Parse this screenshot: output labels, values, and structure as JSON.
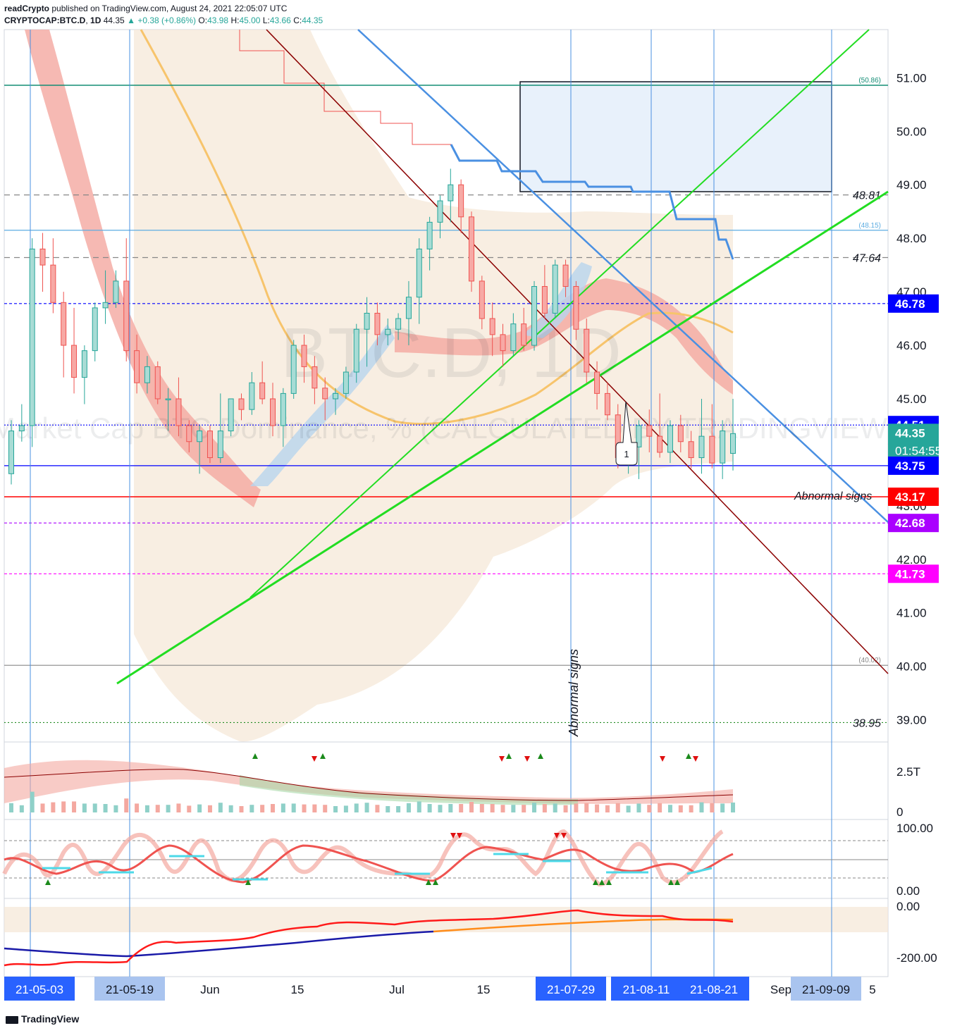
{
  "header": {
    "author": "readCrypto",
    "published_text": "published on TradingView.com, August 24, 2021 22:05:07 UTC",
    "symbol": "CRYPTOCAP:BTC.D",
    "interval": "1D",
    "last": "44.35",
    "change": "+0.38 (+0.86%)",
    "open_label": "O:",
    "open": "43.98",
    "high_label": "H:",
    "high": "45.00",
    "low_label": "L:",
    "low": "43.66",
    "close_label": "C:",
    "close": "44.35"
  },
  "watermark": {
    "symbol": "BTC.D, 1D",
    "description": "Market Cap BTC Dominance, % (CALCULATED BY TRADINGVIEW)"
  },
  "footer": {
    "logo_text": "TradingView"
  },
  "colors": {
    "up": "#26a69a",
    "down": "#ef5350",
    "blue": "#4a90e2",
    "green": "#22dd22",
    "darkred": "#8b0000",
    "orange": "#f7c46c",
    "band": "#f5e8d8"
  },
  "chart_data": {
    "type": "candlestick",
    "title": "",
    "y_axis": {
      "ylim": [
        38.6,
        51.9
      ],
      "ticks": [
        "39.00",
        "40.00",
        "41.00",
        "42.00",
        "43.00",
        "44.00",
        "45.00",
        "46.00",
        "47.00",
        "48.00",
        "49.00",
        "50.00",
        "51.00"
      ]
    },
    "x_axis": {
      "labels": [
        "21-05-03",
        "21-05-19",
        "Jun",
        "15",
        "Jul",
        "15",
        "21-07-29",
        "21-08-11",
        "21-08-21",
        "Sep",
        "21-09-09",
        "5"
      ],
      "highlighted": [
        "21-05-03",
        "21-05-19",
        "21-07-29",
        "21-08-11",
        "21-08-21",
        "21-09-09"
      ]
    },
    "price_badges": [
      {
        "value": "46.78",
        "color": "#0000ff"
      },
      {
        "value": "44.51",
        "color": "#0000ff"
      },
      {
        "value": "44.35",
        "countdown": "01:54:55",
        "color": "#26a69a"
      },
      {
        "value": "43.75",
        "color": "#0000ff"
      },
      {
        "value": "43.17",
        "color": "#ff0000"
      },
      {
        "value": "42.68",
        "color": "#aa00ff"
      },
      {
        "value": "41.73",
        "color": "#ff00ff"
      }
    ],
    "levels": [
      {
        "value": 50.86,
        "label": "(50.86)",
        "color": "#138d75"
      },
      {
        "value": 48.81,
        "label": "48.81",
        "color": "#888888"
      },
      {
        "value": 48.15,
        "label": "(48.15)",
        "color": "#5dade2"
      },
      {
        "value": 47.64,
        "label": "47.64",
        "color": "#888888"
      },
      {
        "value": 46.78,
        "label": "",
        "color": "#0000ff"
      },
      {
        "value": 44.51,
        "label": "",
        "color": "#0000ff"
      },
      {
        "value": 43.75,
        "label": "",
        "color": "#0000ff"
      },
      {
        "value": 43.17,
        "label": "",
        "color": "#ff0000"
      },
      {
        "value": 42.68,
        "label": "",
        "color": "#aa00ff"
      },
      {
        "value": 41.73,
        "label": "",
        "color": "#ff00ff"
      },
      {
        "value": 40.02,
        "label": "(40.02)",
        "color": "#888888"
      },
      {
        "value": 38.95,
        "label": "38.95",
        "color": "#228b22"
      }
    ],
    "annotations": [
      {
        "text": "Abnormal signs",
        "orientation": "vertical"
      },
      {
        "text": "Abnormal signs",
        "orientation": "horizontal"
      },
      {
        "text": "1",
        "type": "callout"
      }
    ],
    "candles": [
      [
        43.6,
        44.6,
        43.4,
        44.4
      ],
      [
        44.4,
        44.9,
        44.2,
        44.5
      ],
      [
        44.5,
        48.0,
        44.1,
        47.8
      ],
      [
        47.8,
        48.1,
        47.0,
        47.5
      ],
      [
        47.5,
        48.0,
        46.6,
        46.8
      ],
      [
        46.8,
        47.0,
        45.4,
        46.0
      ],
      [
        46.0,
        46.7,
        45.1,
        45.4
      ],
      [
        45.4,
        46.0,
        44.9,
        45.9
      ],
      [
        45.9,
        46.8,
        45.7,
        46.7
      ],
      [
        46.7,
        47.4,
        46.4,
        46.8
      ],
      [
        46.8,
        47.4,
        46.7,
        47.2
      ],
      [
        47.2,
        48.0,
        45.7,
        45.9
      ],
      [
        45.9,
        46.2,
        45.1,
        45.3
      ],
      [
        45.3,
        45.8,
        45.1,
        45.6
      ],
      [
        45.6,
        45.7,
        44.9,
        45.0
      ],
      [
        45.0,
        45.2,
        44.4,
        45.0
      ],
      [
        45.0,
        45.4,
        44.3,
        44.5
      ],
      [
        44.5,
        44.6,
        44.0,
        44.2
      ],
      [
        44.2,
        44.5,
        43.6,
        44.4
      ],
      [
        44.4,
        44.5,
        43.8,
        43.9
      ],
      [
        43.9,
        45.1,
        43.8,
        44.4
      ],
      [
        44.4,
        45.0,
        44.3,
        45.0
      ],
      [
        45.0,
        45.1,
        44.6,
        44.8
      ],
      [
        44.8,
        45.5,
        44.7,
        45.3
      ],
      [
        45.3,
        45.7,
        44.9,
        45.0
      ],
      [
        45.0,
        45.3,
        44.3,
        44.5
      ],
      [
        44.5,
        45.2,
        44.1,
        45.1
      ],
      [
        45.1,
        46.1,
        45.0,
        46.0
      ],
      [
        46.0,
        46.2,
        45.3,
        45.6
      ],
      [
        45.6,
        45.8,
        44.9,
        45.2
      ],
      [
        45.2,
        45.4,
        44.6,
        45.0
      ],
      [
        45.0,
        45.2,
        44.7,
        45.1
      ],
      [
        45.1,
        45.6,
        45.0,
        45.5
      ],
      [
        45.5,
        46.4,
        45.3,
        46.3
      ],
      [
        46.3,
        46.9,
        45.6,
        46.6
      ],
      [
        46.6,
        46.8,
        46.0,
        46.2
      ],
      [
        46.2,
        46.5,
        46.0,
        46.3
      ],
      [
        46.3,
        46.6,
        46.1,
        46.5
      ],
      [
        46.5,
        47.2,
        46.0,
        46.9
      ],
      [
        46.9,
        48.0,
        46.4,
        47.8
      ],
      [
        47.8,
        48.4,
        47.4,
        48.3
      ],
      [
        48.3,
        48.8,
        48.0,
        48.7
      ],
      [
        48.7,
        49.3,
        48.3,
        49.0
      ],
      [
        49.0,
        49.1,
        48.1,
        48.4
      ],
      [
        48.4,
        48.5,
        47.0,
        47.2
      ],
      [
        47.2,
        47.3,
        46.3,
        46.5
      ],
      [
        46.5,
        46.8,
        45.8,
        46.2
      ],
      [
        46.2,
        46.4,
        45.6,
        45.9
      ],
      [
        45.9,
        46.6,
        45.8,
        46.4
      ],
      [
        46.4,
        46.7,
        45.9,
        46.0
      ],
      [
        46.0,
        47.2,
        45.9,
        47.1
      ],
      [
        47.1,
        47.5,
        46.5,
        46.6
      ],
      [
        46.6,
        47.6,
        46.5,
        47.5
      ],
      [
        47.5,
        47.6,
        46.9,
        47.1
      ],
      [
        47.1,
        47.2,
        46.1,
        46.3
      ],
      [
        46.3,
        46.5,
        45.3,
        45.5
      ],
      [
        45.5,
        45.7,
        44.8,
        45.1
      ],
      [
        45.1,
        45.3,
        44.6,
        44.7
      ],
      [
        44.7,
        44.9,
        43.7,
        43.9
      ],
      [
        43.9,
        44.2,
        43.6,
        44.1
      ],
      [
        44.1,
        44.6,
        43.5,
        44.5
      ],
      [
        44.5,
        44.8,
        44.0,
        44.3
      ],
      [
        44.3,
        45.1,
        43.9,
        44.0
      ],
      [
        44.0,
        44.6,
        43.8,
        44.5
      ],
      [
        44.5,
        44.7,
        44.0,
        44.2
      ],
      [
        44.2,
        44.4,
        43.7,
        43.9
      ],
      [
        43.9,
        45.0,
        43.6,
        44.3
      ],
      [
        44.3,
        44.9,
        43.7,
        43.8
      ],
      [
        43.8,
        44.6,
        43.5,
        44.4
      ],
      [
        43.98,
        45.0,
        43.66,
        44.35
      ]
    ],
    "volume_panel": {
      "ticks": [
        "2.5T",
        "0"
      ]
    },
    "oscillator_panel": {
      "ticks": [
        "100.00",
        "0.00"
      ]
    },
    "bottom_panel": {
      "ticks": [
        "0.00",
        "-200.00"
      ]
    }
  }
}
